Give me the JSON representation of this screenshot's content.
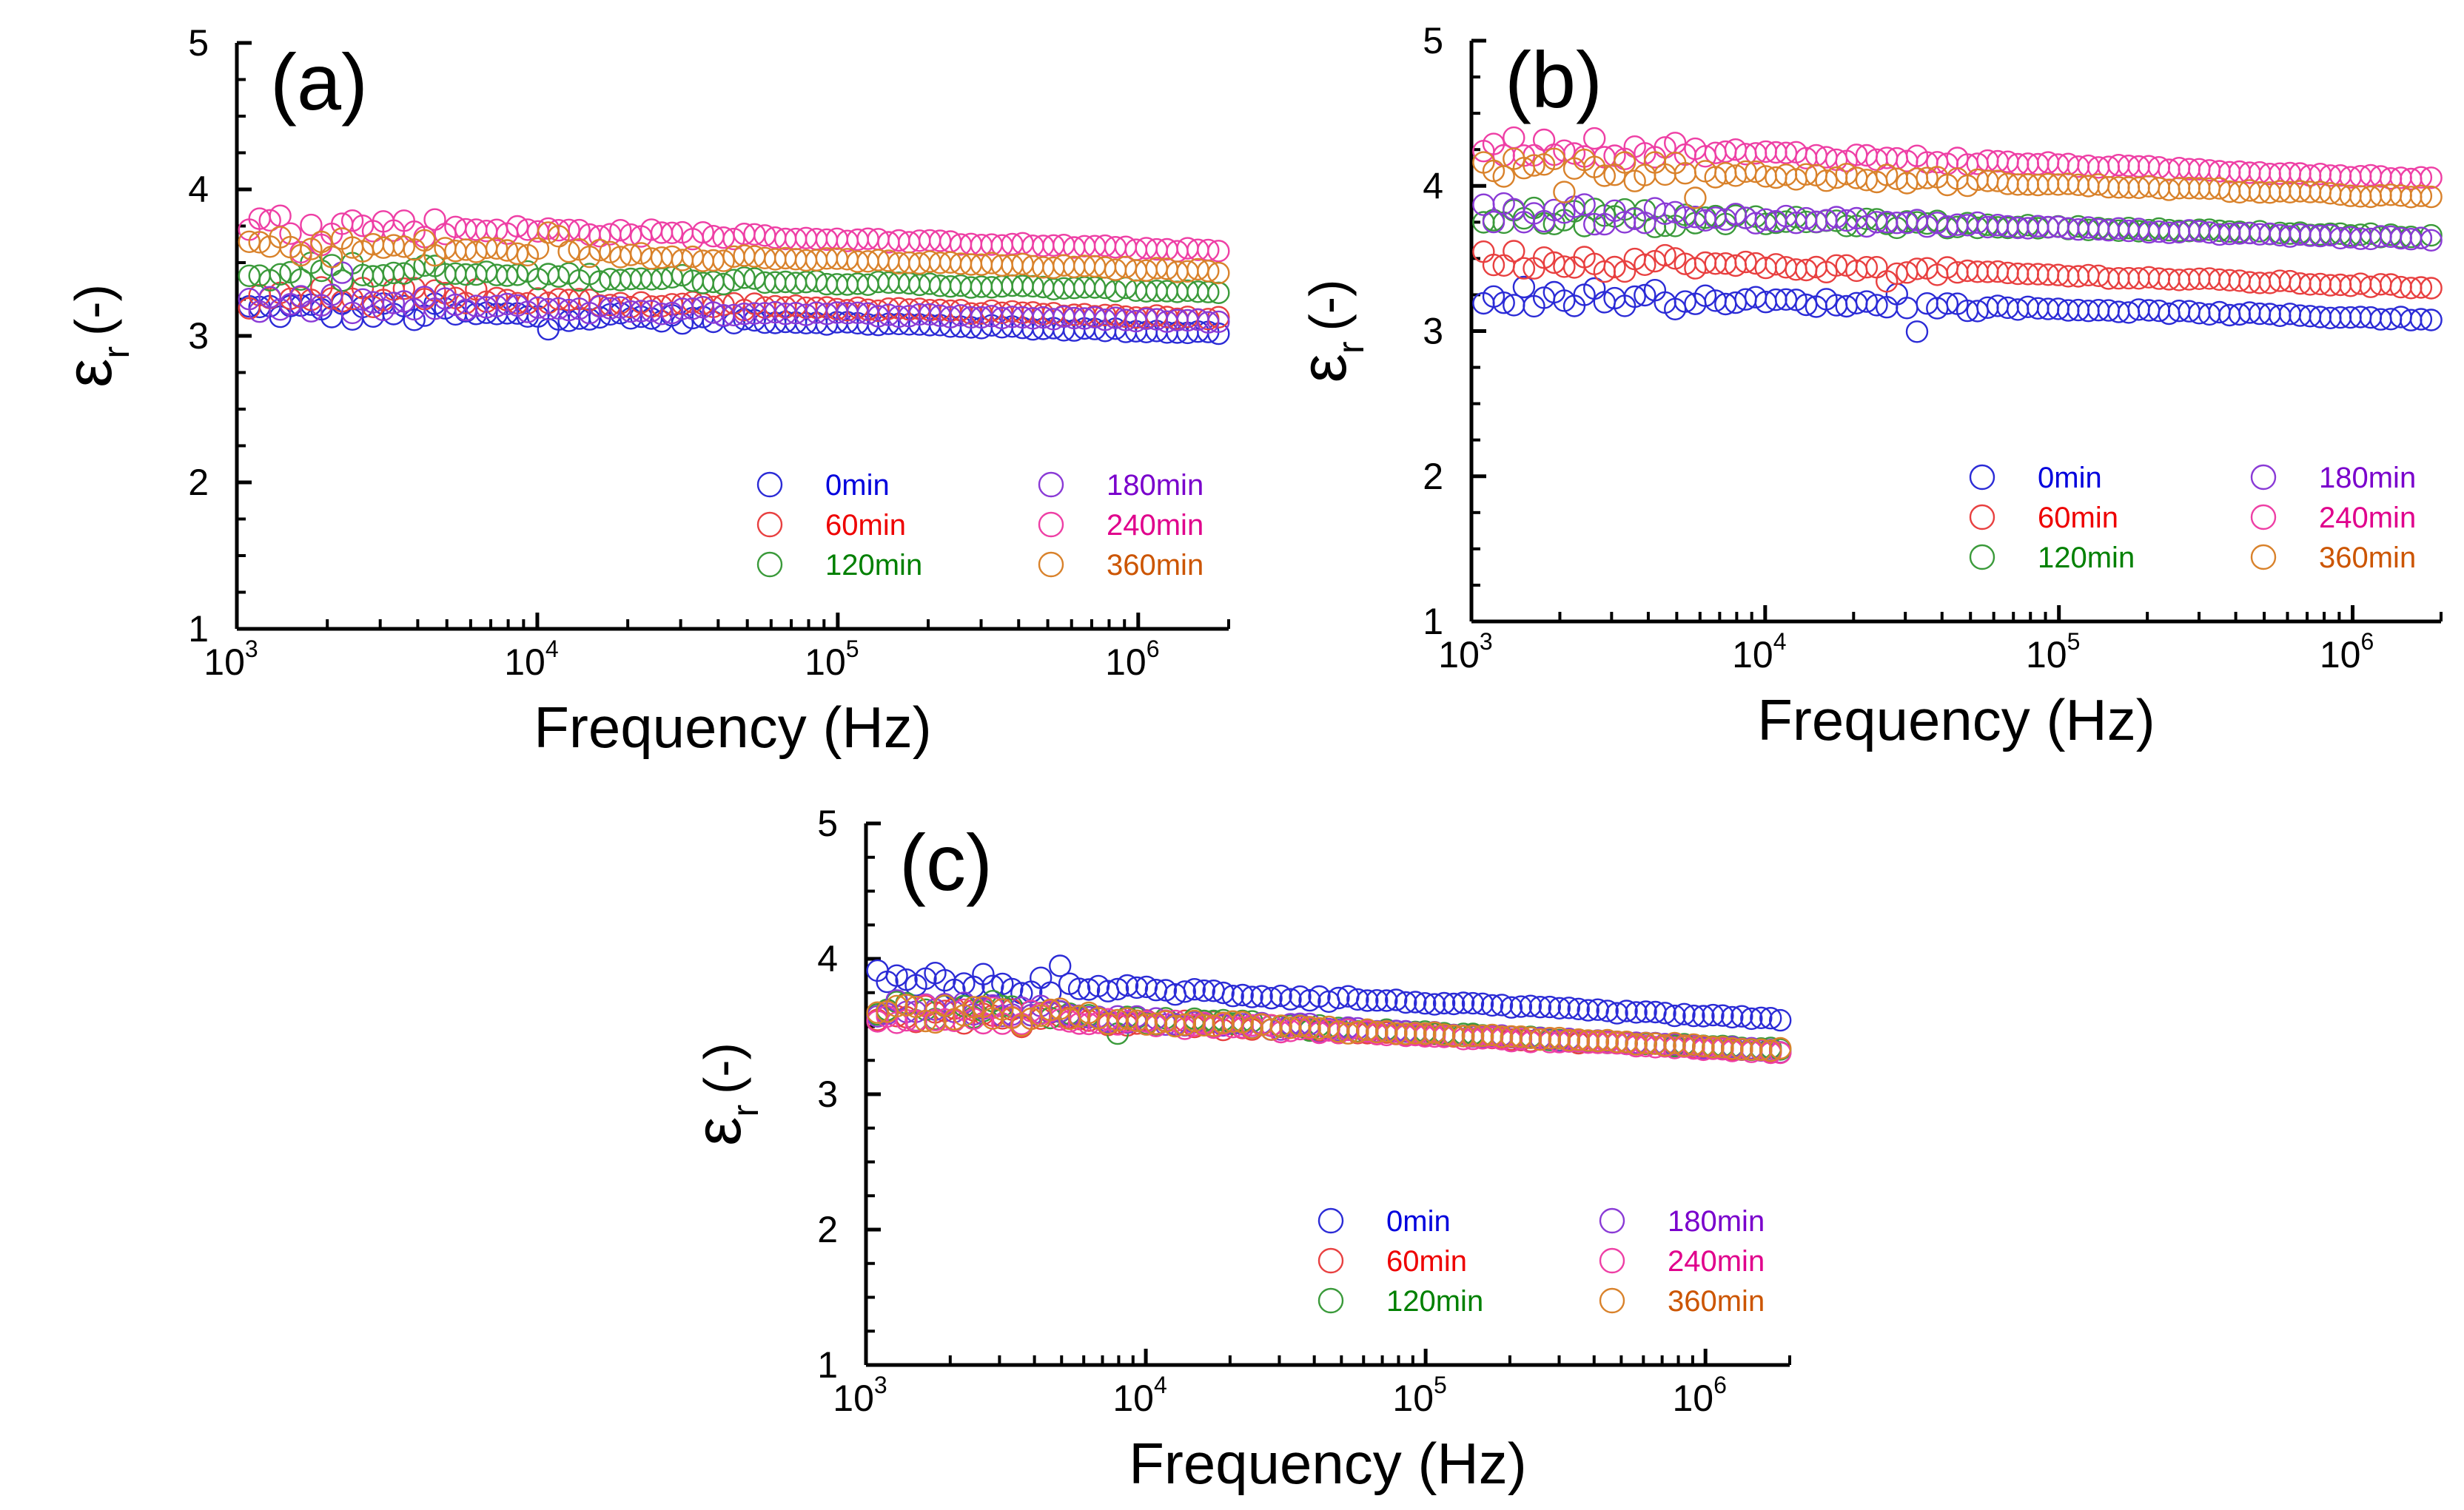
{
  "figure": {
    "ylabel": {
      "symbol": "ε",
      "subscript": "r",
      "unit": "(-)"
    },
    "legend_order": [
      "0min",
      "60min",
      "120min",
      "180min",
      "240min",
      "360min"
    ]
  },
  "chart_data": [
    {
      "type": "scatter",
      "panel": "(a)",
      "title": "(a)",
      "xlabel": "Frequency (Hz)",
      "ylabel": "εr (-)",
      "xscale": "log",
      "xlim": [
        1000,
        2000000
      ],
      "ylim": [
        1,
        5
      ],
      "x_ticks": [
        {
          "base": "10",
          "exp": "3"
        },
        {
          "base": "10",
          "exp": "4"
        },
        {
          "base": "10",
          "exp": "5"
        },
        {
          "base": "10",
          "exp": "6"
        }
      ],
      "y_ticks": [
        "1",
        "2",
        "3",
        "4",
        "5"
      ],
      "marker": "open-circle",
      "legend_position": "lower-right",
      "series": [
        {
          "name": "0min",
          "color": "#2b2bd6",
          "text_color": "#0000dd",
          "start": 3.18,
          "end": 3.02
        },
        {
          "name": "60min",
          "color": "#e84040",
          "text_color": "#ee0000",
          "start": 3.28,
          "end": 3.12
        },
        {
          "name": "120min",
          "color": "#3a9a3a",
          "text_color": "#008000",
          "start": 3.45,
          "end": 3.3
        },
        {
          "name": "180min",
          "color": "#8a3ad6",
          "text_color": "#7a00cc",
          "start": 3.22,
          "end": 3.1
        },
        {
          "name": "240min",
          "color": "#ee3fa5",
          "text_color": "#e0008c",
          "start": 3.77,
          "end": 3.58
        },
        {
          "name": "360min",
          "color": "#d9822b",
          "text_color": "#cc5500",
          "start": 3.62,
          "end": 3.44
        }
      ]
    },
    {
      "type": "scatter",
      "panel": "(b)",
      "title": "(b)",
      "xlabel": "Frequency (Hz)",
      "ylabel": "εr (-)",
      "xscale": "log",
      "xlim": [
        1000,
        2000000
      ],
      "ylim": [
        1,
        5
      ],
      "x_ticks": [
        {
          "base": "10",
          "exp": "3"
        },
        {
          "base": "10",
          "exp": "4"
        },
        {
          "base": "10",
          "exp": "5"
        },
        {
          "base": "10",
          "exp": "6"
        }
      ],
      "y_ticks": [
        "1",
        "2",
        "3",
        "4",
        "5"
      ],
      "marker": "open-circle",
      "legend_position": "lower-right",
      "series": [
        {
          "name": "0min",
          "color": "#2b2bd6",
          "text_color": "#0000dd",
          "start": 3.25,
          "end": 3.08
        },
        {
          "name": "60min",
          "color": "#e84040",
          "text_color": "#ee0000",
          "start": 3.5,
          "end": 3.3
        },
        {
          "name": "120min",
          "color": "#3a9a3a",
          "text_color": "#008000",
          "start": 3.8,
          "end": 3.65
        },
        {
          "name": "180min",
          "color": "#8a3ad6",
          "text_color": "#7a00cc",
          "start": 3.82,
          "end": 3.63
        },
        {
          "name": "240min",
          "color": "#ee3fa5",
          "text_color": "#e0008c",
          "start": 4.28,
          "end": 4.05
        },
        {
          "name": "360min",
          "color": "#d9822b",
          "text_color": "#cc5500",
          "start": 4.13,
          "end": 3.92
        }
      ]
    },
    {
      "type": "scatter",
      "panel": "(c)",
      "title": "(c)",
      "xlabel": "Frequency (Hz)",
      "ylabel": "εr (-)",
      "xscale": "log",
      "xlim": [
        1000,
        2000000
      ],
      "ylim": [
        1,
        5
      ],
      "x_ticks": [
        {
          "base": "10",
          "exp": "3"
        },
        {
          "base": "10",
          "exp": "4"
        },
        {
          "base": "10",
          "exp": "5"
        },
        {
          "base": "10",
          "exp": "6"
        }
      ],
      "y_ticks": [
        "1",
        "2",
        "3",
        "4",
        "5"
      ],
      "marker": "open-circle",
      "legend_position": "lower-right",
      "series": [
        {
          "name": "0min",
          "color": "#2b2bd6",
          "text_color": "#0000dd",
          "start": 3.85,
          "end": 3.55
        },
        {
          "name": "60min",
          "color": "#e84040",
          "text_color": "#ee0000",
          "start": 3.6,
          "end": 3.32
        },
        {
          "name": "120min",
          "color": "#3a9a3a",
          "text_color": "#008000",
          "start": 3.62,
          "end": 3.33
        },
        {
          "name": "180min",
          "color": "#8a3ad6",
          "text_color": "#7a00cc",
          "start": 3.63,
          "end": 3.32
        },
        {
          "name": "240min",
          "color": "#ee3fa5",
          "text_color": "#e0008c",
          "start": 3.6,
          "end": 3.31
        },
        {
          "name": "360min",
          "color": "#d9822b",
          "text_color": "#cc5500",
          "start": 3.61,
          "end": 3.33
        }
      ]
    }
  ]
}
